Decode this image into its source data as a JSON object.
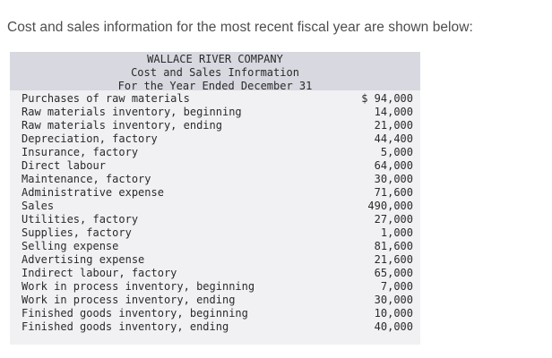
{
  "intro": "Cost and sales information for the most recent fiscal year are shown below:",
  "statement": {
    "company": "WALLACE RIVER COMPANY",
    "subtitle": "Cost and Sales Information",
    "period": "For the Year Ended December 31",
    "rows": [
      {
        "label": "Purchases of raw materials",
        "amount": "$ 94,000"
      },
      {
        "label": "Raw materials inventory, beginning",
        "amount": "14,000"
      },
      {
        "label": "Raw materials inventory, ending",
        "amount": "21,000"
      },
      {
        "label": "Depreciation, factory",
        "amount": "44,400"
      },
      {
        "label": "Insurance, factory",
        "amount": "5,000"
      },
      {
        "label": "Direct labour",
        "amount": "64,000"
      },
      {
        "label": "Maintenance, factory",
        "amount": "30,000"
      },
      {
        "label": "Administrative expense",
        "amount": "71,600"
      },
      {
        "label": "Sales",
        "amount": "490,000"
      },
      {
        "label": "Utilities, factory",
        "amount": "27,000"
      },
      {
        "label": "Supplies, factory",
        "amount": "1,000"
      },
      {
        "label": "Selling expense",
        "amount": "81,600"
      },
      {
        "label": "Advertising expense",
        "amount": "21,600"
      },
      {
        "label": "Indirect labour, factory",
        "amount": "65,000"
      },
      {
        "label": "Work in process inventory, beginning",
        "amount": "7,000"
      },
      {
        "label": "Work in process inventory, ending",
        "amount": "30,000"
      },
      {
        "label": "Finished goods inventory, beginning",
        "amount": "10,000"
      },
      {
        "label": "Finished goods inventory, ending",
        "amount": "40,000"
      }
    ]
  }
}
